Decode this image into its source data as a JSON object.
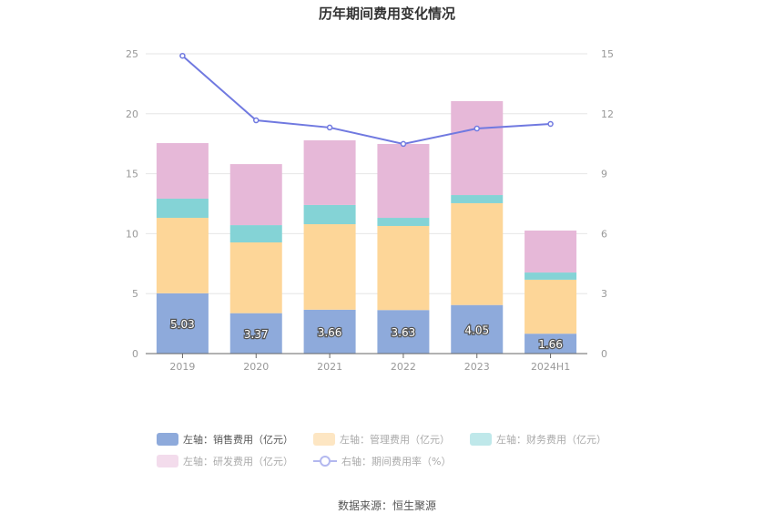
{
  "chart_data": {
    "type": "bar",
    "title": "历年期间费用变化情况",
    "categories": [
      "2019",
      "2020",
      "2021",
      "2022",
      "2023",
      "2024H1"
    ],
    "stacked": true,
    "left_axis": {
      "ylim": [
        0,
        25
      ],
      "ticks": [
        0,
        5,
        10,
        15,
        20,
        25
      ]
    },
    "right_axis": {
      "ylim": [
        0,
        15
      ],
      "ticks": [
        0,
        3,
        6,
        9,
        12,
        15
      ]
    },
    "grid": true,
    "legend_position": "bottom",
    "series": [
      {
        "name": "左轴：销售费用（亿元）",
        "type": "bar",
        "axis": "left",
        "color": "#8eaadb",
        "values": [
          5.03,
          3.37,
          3.66,
          3.63,
          4.05,
          1.66
        ],
        "labels": [
          "5.03",
          "3.37",
          "3.66",
          "3.63",
          "4.05",
          "1.66"
        ]
      },
      {
        "name": "左轴：管理费用（亿元）",
        "type": "bar",
        "axis": "left",
        "color": "#fdd698",
        "values": [
          6.29,
          5.9,
          7.13,
          7.01,
          8.49,
          4.5
        ]
      },
      {
        "name": "左轴：财务费用（亿元）",
        "type": "bar",
        "axis": "left",
        "color": "#84d3d6",
        "values": [
          1.6,
          1.44,
          1.6,
          0.68,
          0.68,
          0.6
        ]
      },
      {
        "name": "左轴：研发费用（亿元）",
        "type": "bar",
        "axis": "left",
        "color": "#e6b8d8",
        "values": [
          4.63,
          5.09,
          5.39,
          6.16,
          7.83,
          3.5
        ]
      },
      {
        "name": "右轴：期间费用率（%）",
        "type": "line",
        "axis": "right",
        "color": "#7079e0",
        "values": [
          14.9,
          11.67,
          11.31,
          10.49,
          11.26,
          11.49
        ]
      }
    ]
  },
  "source": "数据来源：恒生聚源"
}
